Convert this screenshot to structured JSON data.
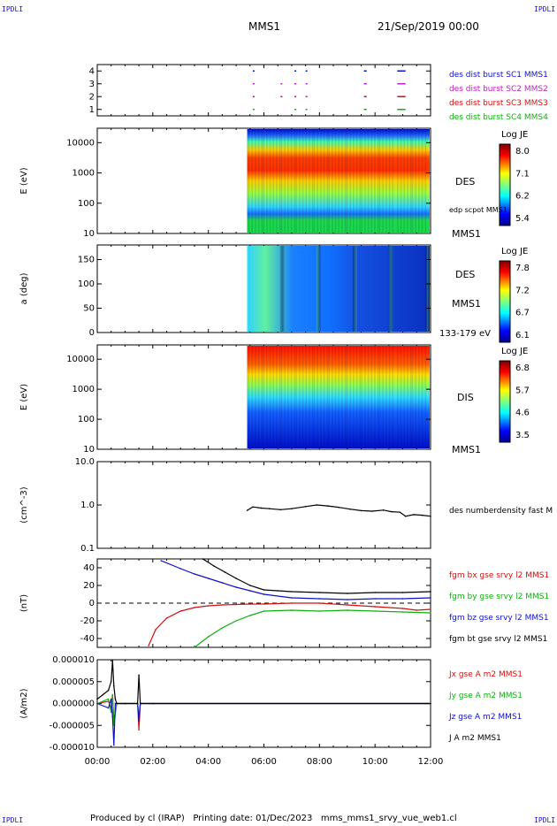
{
  "corners": {
    "top_left": "IPDLI",
    "top_right": "IPDLI",
    "bottom_left": "IPDLI",
    "bottom_right": "IPDLI"
  },
  "header": {
    "spacecraft": "MMS1",
    "datetime": "21/Sep/2019 00:00"
  },
  "footer": {
    "text": "Produced by cl (IRAP)   Printing date: 01/Dec/2023   mms_mms1_srvy_vue_web1.cl"
  },
  "colors": {
    "blue": "#1010c8",
    "magenta": "#c020c0",
    "red": "#d01010",
    "green": "#10b010",
    "black": "#000000"
  },
  "chart_data": [
    {
      "type": "scatter",
      "title": "",
      "ylim": [
        0.5,
        4.5
      ],
      "yticks": [
        "1",
        "2",
        "3",
        "4"
      ],
      "series": [
        {
          "name": "des dist burst SC1 MMS1",
          "level": 4,
          "color": "#1010c8",
          "intervals": [
            [
              5.6,
              5.65
            ],
            [
              7.1,
              7.15
            ],
            [
              7.5,
              7.55
            ],
            [
              9.6,
              9.7
            ],
            [
              10.8,
              11.1
            ]
          ]
        },
        {
          "name": "des dist burst SC2 MMS2",
          "level": 3,
          "color": "#c020c0",
          "intervals": [
            [
              5.6,
              5.65
            ],
            [
              6.6,
              6.65
            ],
            [
              7.1,
              7.15
            ],
            [
              7.5,
              7.55
            ],
            [
              9.6,
              9.7
            ],
            [
              10.8,
              11.1
            ]
          ]
        },
        {
          "name": "des dist burst SC3 MMS3",
          "level": 2,
          "color": "#d01010",
          "intervals": [
            [
              5.6,
              5.65
            ],
            [
              6.6,
              6.65
            ],
            [
              7.1,
              7.15
            ],
            [
              7.5,
              7.55
            ],
            [
              9.6,
              9.7
            ],
            [
              10.8,
              11.1
            ]
          ]
        },
        {
          "name": "des dist burst SC4 MMS4",
          "level": 1,
          "color": "#10b010",
          "intervals": [
            [
              5.6,
              5.65
            ],
            [
              7.1,
              7.15
            ],
            [
              7.5,
              7.55
            ],
            [
              9.6,
              9.7
            ],
            [
              10.8,
              11.1
            ]
          ]
        }
      ]
    },
    {
      "type": "heatmap",
      "ylabel": "E (eV)",
      "yscale": "log",
      "ylim": [
        10,
        30000
      ],
      "yticks": [
        "10",
        "100",
        "1000",
        "10000"
      ],
      "instrument": "DES",
      "spacecraft": "MMS1",
      "overlay_label": "edp scpot MMS1",
      "colorbar": {
        "label": "Log JE",
        "ticks": [
          "8.0",
          "7.1",
          "6.2",
          "5.4"
        ]
      },
      "data_start_hours": 5.4
    },
    {
      "type": "heatmap",
      "ylabel": "a (deg)",
      "ylim": [
        0,
        180
      ],
      "yticks": [
        "0",
        "50",
        "100",
        "150"
      ],
      "instrument": "DES",
      "spacecraft": "MMS1",
      "energy_range": "133-179 eV",
      "colorbar": {
        "label": "Log JE",
        "ticks": [
          "7.8",
          "7.2",
          "6.7",
          "6.1"
        ]
      },
      "data_start_hours": 5.4
    },
    {
      "type": "heatmap",
      "ylabel": "E (eV)",
      "yscale": "log",
      "ylim": [
        10,
        30000
      ],
      "yticks": [
        "10",
        "100",
        "1000",
        "10000"
      ],
      "instrument": "DIS",
      "spacecraft": "MMS1",
      "colorbar": {
        "label": "Log JE",
        "ticks": [
          "6.8",
          "5.7",
          "4.6",
          "3.5"
        ]
      },
      "data_start_hours": 5.4
    },
    {
      "type": "line",
      "ylabel": "(cm^-3)",
      "yscale": "log",
      "ylim": [
        0.1,
        10
      ],
      "yticks": [
        "0.1",
        "1.0",
        "10.0"
      ],
      "series": [
        {
          "name": "des numberdensity fast M",
          "color": "#000000",
          "x": [
            5.4,
            5.6,
            5.9,
            6.2,
            6.6,
            7.0,
            7.5,
            7.9,
            8.3,
            8.7,
            9.1,
            9.5,
            9.9,
            10.3,
            10.6,
            10.9,
            11.1,
            11.4,
            11.7,
            12.0
          ],
          "y": [
            0.75,
            0.9,
            0.85,
            0.82,
            0.78,
            0.82,
            0.92,
            1.0,
            0.95,
            0.88,
            0.8,
            0.74,
            0.72,
            0.76,
            0.7,
            0.68,
            0.55,
            0.6,
            0.58,
            0.55
          ]
        }
      ]
    },
    {
      "type": "line",
      "ylabel": "(nT)",
      "ylim": [
        -50,
        50
      ],
      "yticks": [
        "-40",
        "-20",
        "0",
        "20",
        "40"
      ],
      "series": [
        {
          "name": "fgm bx gse srvy l2 MMS1",
          "color": "#d01010",
          "x": [
            1.85,
            2.1,
            2.5,
            3.0,
            3.5,
            4.0,
            4.5,
            5.0,
            5.5,
            6.0,
            7.0,
            8.0,
            9.0,
            10.0,
            11.0,
            11.5,
            12.0
          ],
          "y": [
            -48,
            -30,
            -17,
            -9,
            -5,
            -3,
            -2,
            -1.5,
            -1,
            -1,
            0,
            0,
            -2,
            -4,
            -6,
            -8,
            -7
          ]
        },
        {
          "name": "fgm by gse srvy l2 MMS1",
          "color": "#10b010",
          "x": [
            3.5,
            4.0,
            4.5,
            5.0,
            5.5,
            6.0,
            7.0,
            8.0,
            9.0,
            10.0,
            11.0,
            12.0
          ],
          "y": [
            -50,
            -38,
            -28,
            -20,
            -14,
            -9,
            -8,
            -9,
            -8,
            -9,
            -10,
            -11
          ]
        },
        {
          "name": "fgm bz gse srvy l2 MMS1",
          "color": "#1010c8",
          "x": [
            2.3,
            3.0,
            3.5,
            4.0,
            4.5,
            5.0,
            5.5,
            6.0,
            7.0,
            8.0,
            9.0,
            10.0,
            11.0,
            12.0
          ],
          "y": [
            48,
            39,
            33,
            28,
            23,
            18,
            14,
            10,
            6,
            5,
            4,
            5,
            5,
            6
          ]
        },
        {
          "name": "fgm bt gse srvy l2 MMS1",
          "color": "#000000",
          "x": [
            3.8,
            4.2,
            4.6,
            5.0,
            5.5,
            6.0,
            6.5,
            7.0,
            8.0,
            9.0,
            10.0,
            11.0,
            12.0
          ],
          "y": [
            50,
            42,
            35,
            28,
            20,
            15,
            14,
            13,
            12,
            11,
            12,
            12,
            13
          ]
        }
      ]
    },
    {
      "type": "line",
      "ylabel": "(A/m2)",
      "ylim": [
        -1e-05,
        1e-05
      ],
      "yticks": [
        "-0.000010",
        "-0.000005",
        "0.000000",
        "0.000005",
        "0.000010"
      ],
      "series": [
        {
          "name": "Jx gse A m2 MMS1",
          "color": "#d01010",
          "x": [
            0,
            0.4,
            0.5,
            0.55,
            0.6,
            0.7,
            1.0,
            1.45,
            1.5,
            1.55,
            2.0,
            12.0
          ],
          "y": [
            0,
            5e-07,
            -1e-06,
            2e-06,
            -4e-06,
            0,
            0,
            0,
            -6e-06,
            0,
            0,
            0
          ]
        },
        {
          "name": "Jy gse A m2 MMS1",
          "color": "#10b010",
          "x": [
            0,
            0.4,
            0.5,
            0.55,
            0.6,
            0.7,
            1.0,
            1.45,
            1.5,
            1.55,
            2.0,
            12.0
          ],
          "y": [
            0,
            1e-06,
            -2e-06,
            2e-06,
            -5e-06,
            0,
            0,
            0,
            -3e-06,
            0,
            0,
            0
          ]
        },
        {
          "name": "Jz gse A m2 MMS1",
          "color": "#1010c8",
          "x": [
            0,
            0.4,
            0.5,
            0.55,
            0.6,
            0.65,
            1.0,
            1.45,
            1.5,
            1.55,
            2.0,
            12.0
          ],
          "y": [
            0,
            -1e-06,
            1e-06,
            -3e-06,
            -9.5e-06,
            0,
            0,
            0,
            -4e-06,
            0,
            0,
            0
          ]
        },
        {
          "name": "J A m2 MMS1",
          "color": "#000000",
          "x": [
            0,
            0.2,
            0.4,
            0.5,
            0.55,
            0.6,
            0.65,
            0.7,
            1.0,
            1.45,
            1.5,
            1.55,
            2.0,
            12.0
          ],
          "y": [
            1e-06,
            2e-06,
            3e-06,
            5e-06,
            9.8e-06,
            4e-06,
            1e-06,
            0,
            0,
            0,
            6.5e-06,
            0,
            0,
            0
          ]
        }
      ]
    }
  ],
  "time_axis": {
    "xlim": [
      0,
      12
    ],
    "ticks": [
      "00:00",
      "02:00",
      "04:00",
      "06:00",
      "08:00",
      "10:00",
      "12:00"
    ]
  }
}
